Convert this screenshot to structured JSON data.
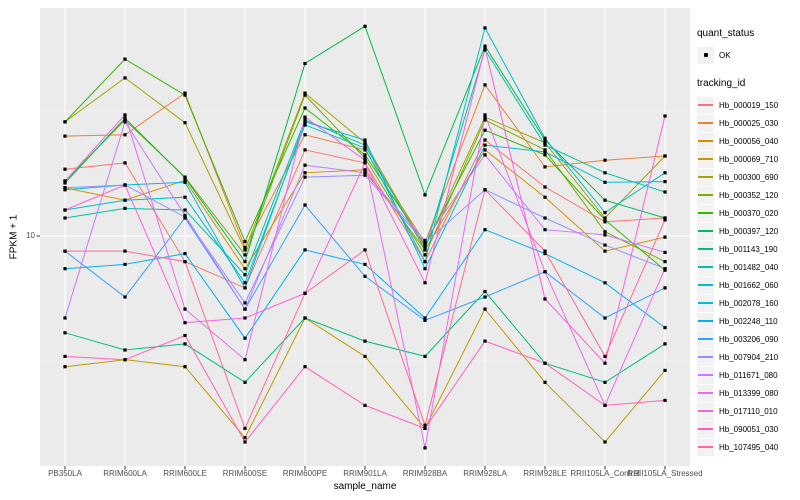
{
  "figure": {
    "xlabel": "sample_name",
    "ylabel": "FPKM + 1",
    "y_tick_label": "10"
  },
  "legend": {
    "quant_status": {
      "title": "quant_status",
      "ok_label": "OK",
      "ok_symbol": "black-point-icon"
    },
    "tracking_id": {
      "title": "tracking_id"
    }
  },
  "colors": {
    "panel_bg": "#ebebeb",
    "grid_major": "#ffffff",
    "grid_minor": "#f5f5f5",
    "point": "#000000",
    "tick_mark": "#333333",
    "tick_text": "#4d4d4d",
    "legend_key_bg": "#f2f2f2"
  },
  "chart_data": {
    "type": "line",
    "title": "",
    "xlabel": "sample_name",
    "ylabel": "FPKM + 1",
    "yscale": "log10",
    "ylim": [
      1.2,
      82
    ],
    "y_major_breaks": [
      10
    ],
    "y_minor_breaks": [
      3.16,
      31.6
    ],
    "grid": true,
    "legend_position": "right",
    "point_shape": "small-black-square",
    "categories": [
      "PB350LA",
      "RRIM600LA",
      "RRIM600LE",
      "RRIM600SE",
      "RRIM600PE",
      "RRIM901LA",
      "RRIM928BA",
      "RRIM928LA",
      "RRIM928LE",
      "RRII105LA_Control",
      "RRII105LA_Stressed"
    ],
    "series": [
      {
        "name": "Hb_000019_150",
        "color": "#F8766D",
        "values": [
          18.5,
          19.6,
          7.9,
          6.2,
          22.1,
          19.6,
          7.9,
          24.2,
          15.7,
          11.4,
          11.8
        ]
      },
      {
        "name": "Hb_000025_030",
        "color": "#EA8331",
        "values": [
          25.1,
          25.4,
          37.3,
          9.0,
          25.4,
          22.1,
          9.4,
          40.2,
          18.9,
          20.1,
          20.9
        ]
      },
      {
        "name": "Hb_000056_040",
        "color": "#D89000",
        "values": [
          15.6,
          13.9,
          16.7,
          7.4,
          17.9,
          18.4,
          8.8,
          22.1,
          14.3,
          8.7,
          9.9
        ]
      },
      {
        "name": "Hb_000069_710",
        "color": "#C09B00",
        "values": [
          3.0,
          3.2,
          3.0,
          1.56,
          4.7,
          3.3,
          1.7,
          5.1,
          2.6,
          1.5,
          2.9
        ]
      },
      {
        "name": "Hb_000300_690",
        "color": "#A3A500",
        "values": [
          28.6,
          42.9,
          28.4,
          8.8,
          37.3,
          23.6,
          9.0,
          29.9,
          23.6,
          11.8,
          20.9
        ]
      },
      {
        "name": "Hb_000352_120",
        "color": "#7CAE00",
        "values": [
          16.6,
          29.1,
          17.2,
          8.4,
          36.6,
          20.5,
          8.4,
          29.1,
          22.1,
          10.4,
          7.9
        ]
      },
      {
        "name": "Hb_000370_020",
        "color": "#39B600",
        "values": [
          28.6,
          51,
          36.6,
          9.5,
          32.5,
          21.1,
          9.2,
          26.5,
          21.1,
          11.6,
          7.3
        ]
      },
      {
        "name": "Hb_000397_120",
        "color": "#00BB4E",
        "values": [
          16.3,
          29.6,
          17.1,
          7.9,
          49,
          69,
          14.6,
          57.5,
          24.2,
          13.9,
          11.8
        ]
      },
      {
        "name": "Hb_001143_190",
        "color": "#00BF7D",
        "values": [
          4.1,
          3.5,
          3.7,
          2.6,
          4.7,
          3.8,
          3.3,
          6.0,
          3.1,
          2.6,
          3.7
        ]
      },
      {
        "name": "Hb_001482_040",
        "color": "#00C1A3",
        "values": [
          11.8,
          12.9,
          12.7,
          7.0,
          29.1,
          23.1,
          8.8,
          55.5,
          23.1,
          17.9,
          15.0
        ]
      },
      {
        "name": "Hb_001662_060",
        "color": "#00BFC4",
        "values": [
          12.7,
          13.9,
          14.3,
          6.5,
          27.8,
          22.5,
          7.9,
          68,
          24.6,
          12.4,
          17.9
        ]
      },
      {
        "name": "Hb_002078_160",
        "color": "#00BAE0",
        "values": [
          15.3,
          16.0,
          16.4,
          6.2,
          28.6,
          24.2,
          7.4,
          23.1,
          21.7,
          16.4,
          16.5
        ]
      },
      {
        "name": "Hb_002248_110",
        "color": "#00B0F6",
        "values": [
          7.4,
          7.7,
          8.5,
          3.9,
          8.8,
          7.7,
          4.7,
          10.6,
          8.5,
          6.5,
          4.3
        ]
      },
      {
        "name": "Hb_003206_090",
        "color": "#35A2FF",
        "values": [
          8.7,
          5.7,
          11.8,
          5.1,
          13.3,
          6.9,
          4.6,
          5.7,
          7.2,
          4.7,
          6.2
        ]
      },
      {
        "name": "Hb_007904_210",
        "color": "#9590FF",
        "values": [
          15.6,
          16.0,
          11.9,
          5.4,
          17.2,
          17.5,
          9.4,
          15.3,
          11.8,
          9.2,
          7.4
        ]
      },
      {
        "name": "Hb_011671_080",
        "color": "#C77CFF",
        "values": [
          4.7,
          28.6,
          12.1,
          5.1,
          19.2,
          17.9,
          9.6,
          21.1,
          10.6,
          10.1,
          8.6
        ]
      },
      {
        "name": "Hb_013399_080",
        "color": "#E76BF3",
        "values": [
          16.6,
          30.5,
          5.1,
          3.2,
          29.9,
          20.1,
          1.42,
          30.5,
          7.2,
          2.1,
          7.4
        ]
      },
      {
        "name": "Hb_017110_010",
        "color": "#FA62DB",
        "values": [
          12.7,
          16.0,
          4.5,
          4.7,
          5.9,
          19.6,
          6.5,
          56.5,
          5.6,
          3.1,
          30.2
        ]
      },
      {
        "name": "Hb_090051_030",
        "color": "#FF62BC",
        "values": [
          3.3,
          3.2,
          4.0,
          1.5,
          3.0,
          2.1,
          1.7,
          3.8,
          3.1,
          2.1,
          2.2
        ]
      },
      {
        "name": "Hb_107495_040",
        "color": "#FF6A98",
        "values": [
          8.7,
          8.7,
          7.9,
          1.7,
          5.9,
          8.8,
          1.75,
          15.3,
          8.7,
          3.3,
          11.6
        ]
      }
    ]
  }
}
